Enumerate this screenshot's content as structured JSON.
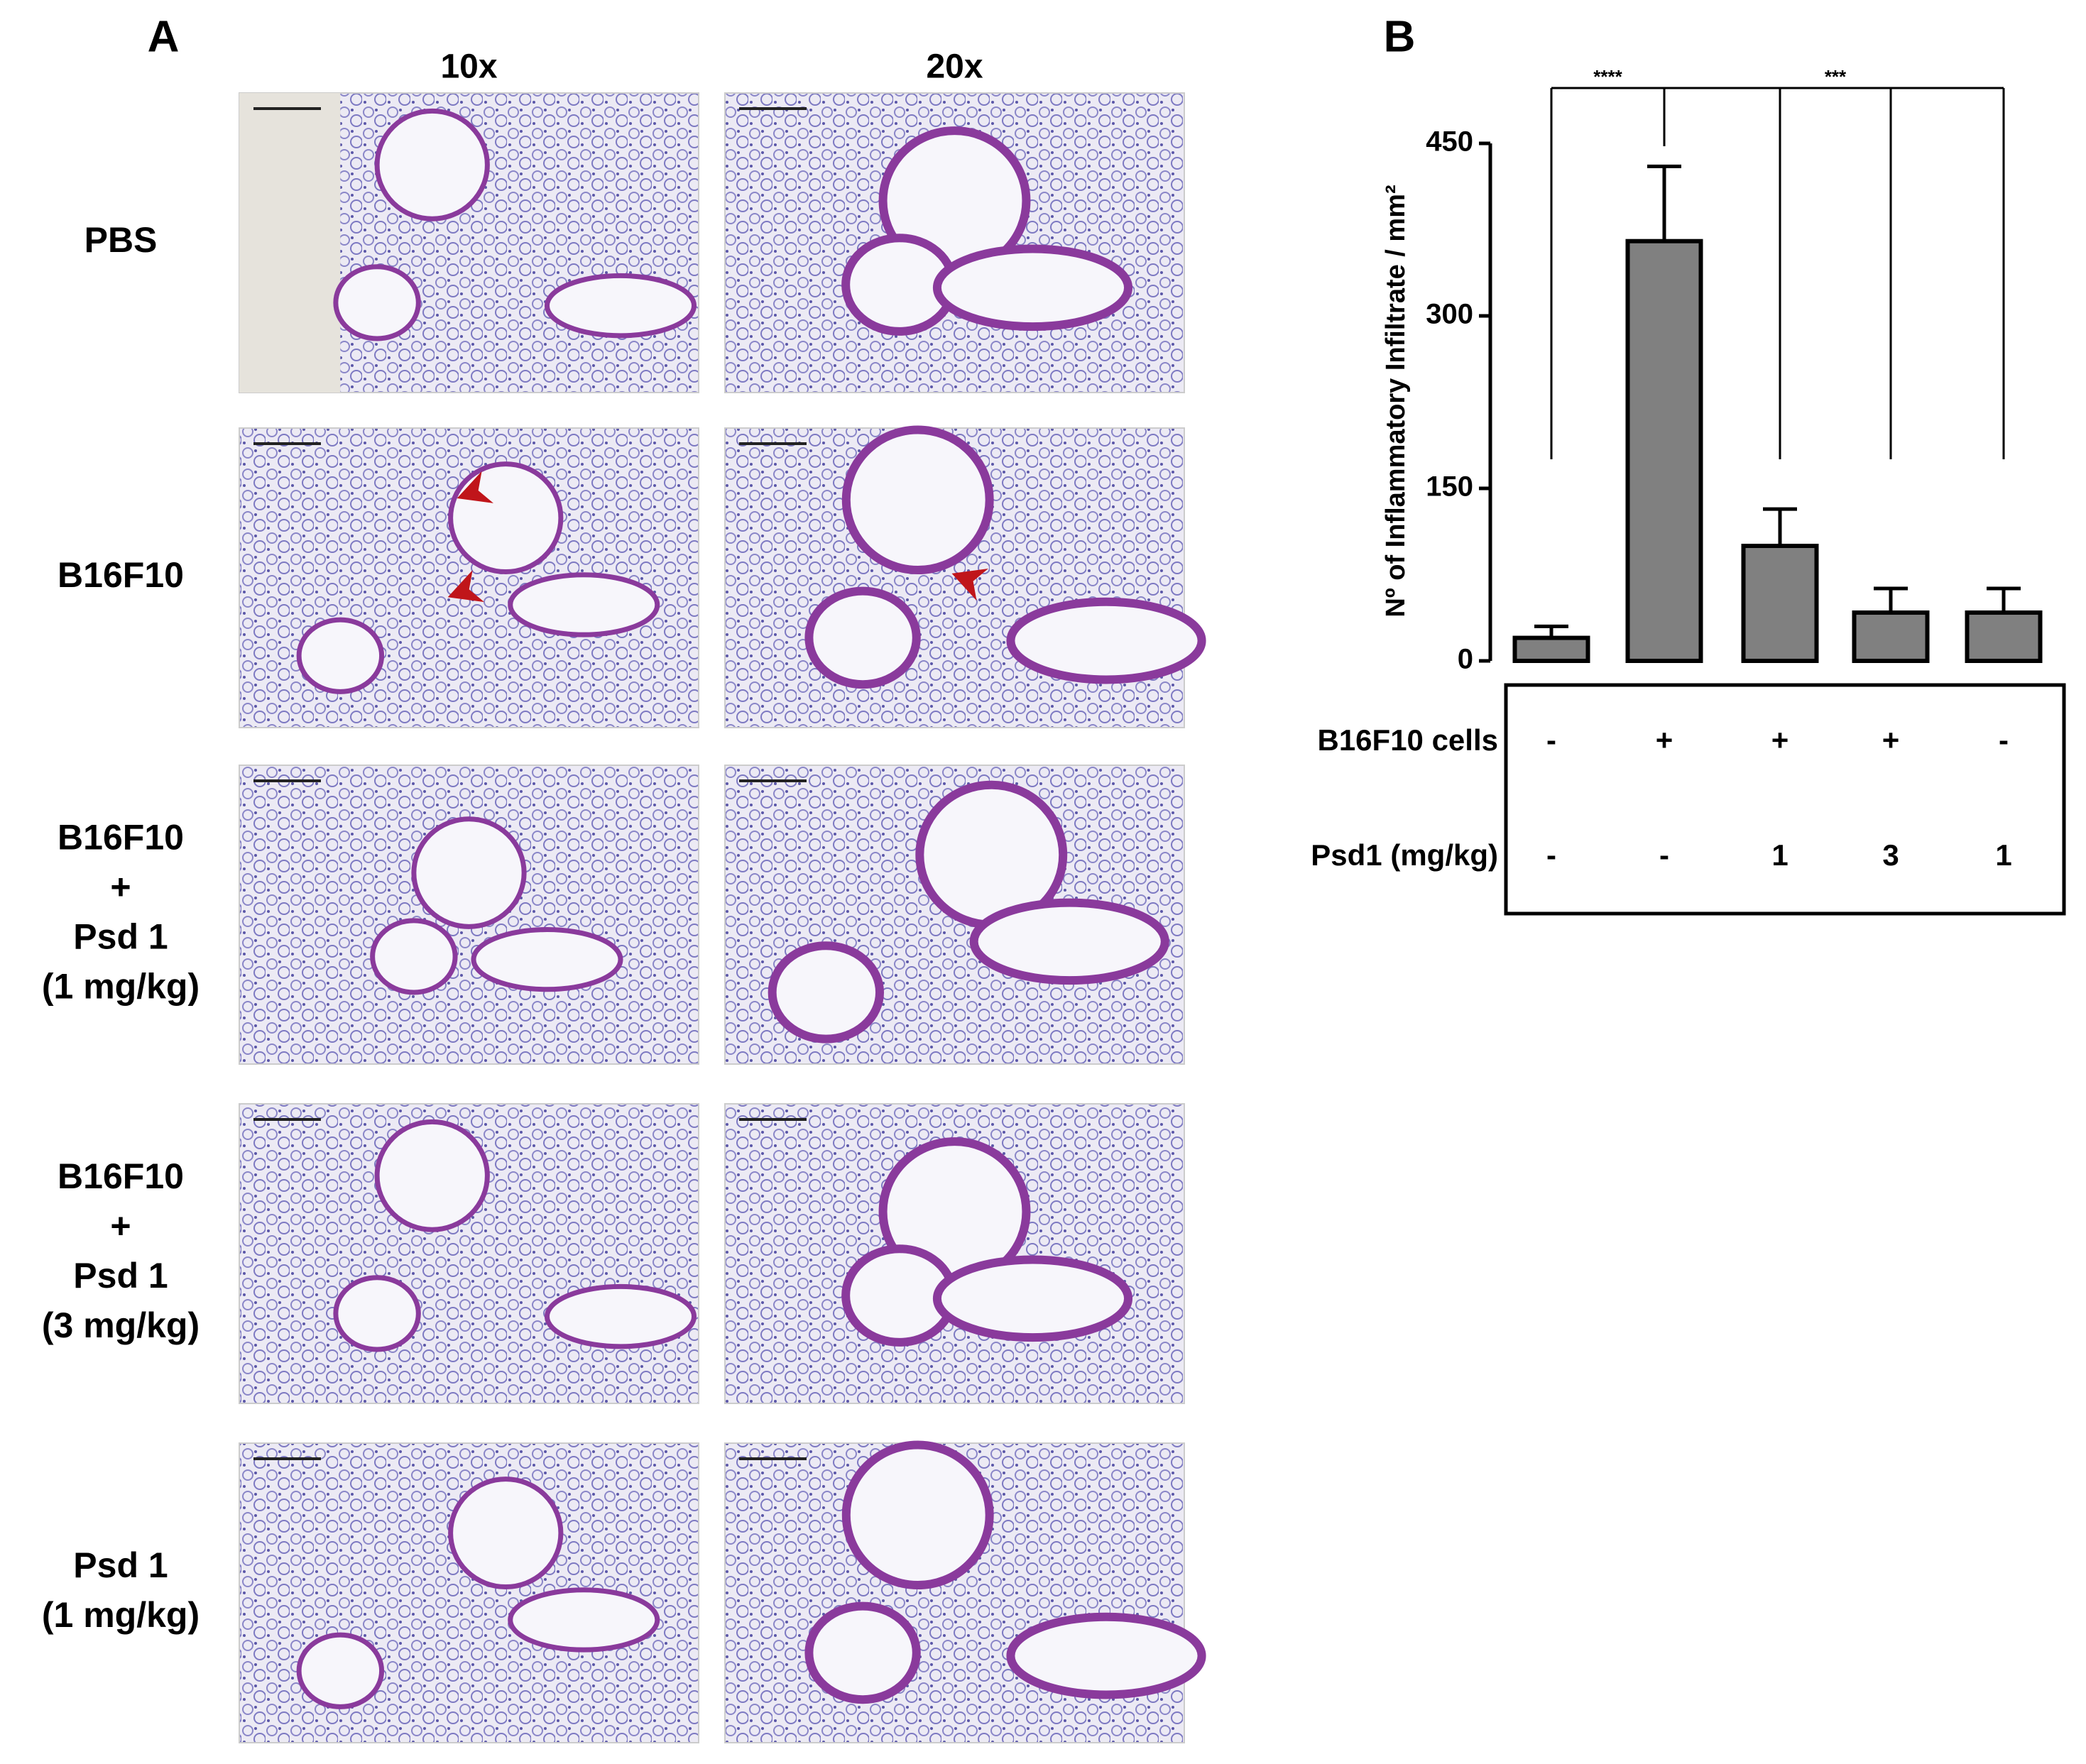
{
  "panel_a": {
    "label": "A",
    "columns": [
      "10x",
      "20x"
    ],
    "rows": [
      [
        "PBS"
      ],
      [
        "B16F10"
      ],
      [
        "B16F10",
        "+",
        "Psd 1",
        "(1 mg/kg)"
      ],
      [
        "B16F10",
        "+",
        "Psd 1",
        "(3 mg/kg)"
      ],
      [
        "Psd 1",
        "(1 mg/kg)"
      ]
    ]
  },
  "chart_data": {
    "type": "bar",
    "panel_label": "B",
    "ylabel": "Nº of Inflammatory Infiltrate / mm²",
    "values": [
      20,
      365,
      100,
      42,
      42
    ],
    "errors": [
      10,
      65,
      32,
      21,
      21
    ],
    "color": "#808080",
    "ylim": [
      0,
      450
    ],
    "yticks": [
      0,
      150,
      300,
      450
    ],
    "significance": [
      "****",
      "***"
    ],
    "table": {
      "rows": [
        {
          "label": "B16F10 cells",
          "values": [
            "-",
            "+",
            "+",
            "+",
            "-"
          ]
        },
        {
          "label": "Psd1 (mg/kg)",
          "values": [
            "-",
            "-",
            "1",
            "3",
            "1"
          ]
        }
      ]
    }
  }
}
